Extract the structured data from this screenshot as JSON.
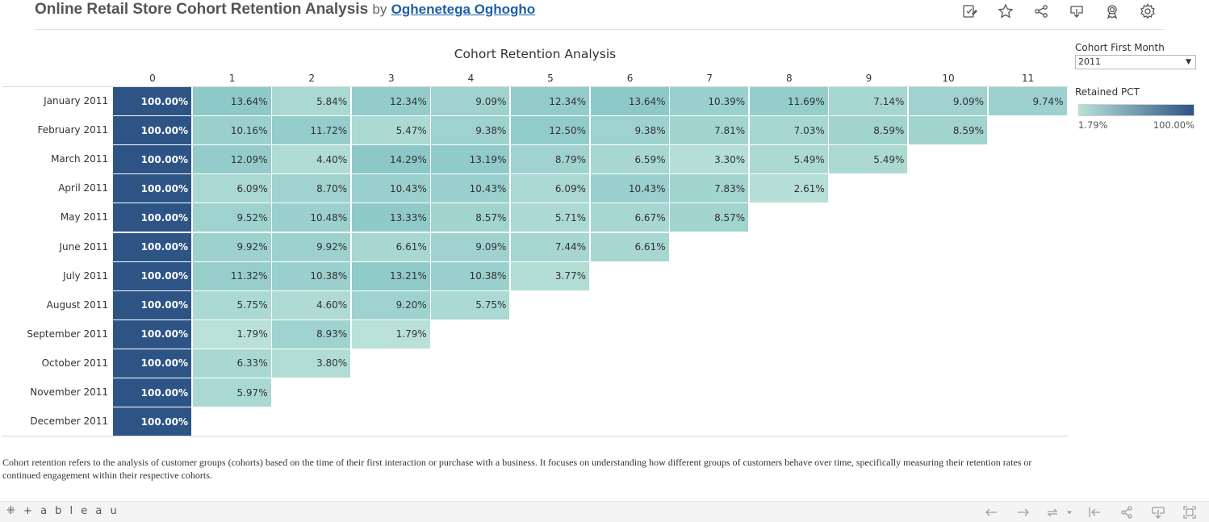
{
  "header": {
    "title": "Online Retail Store Cohort Retention Analysis",
    "by": "by",
    "author": "Oghenetega Oghogho"
  },
  "toolbar": {
    "icons": [
      "edit-icon",
      "star-icon",
      "share-icon",
      "download-icon",
      "badge-icon",
      "gear-icon"
    ]
  },
  "filter": {
    "label": "Cohort First Month",
    "value": "2011"
  },
  "legend": {
    "title": "Retained PCT",
    "min_label": "1.79%",
    "max_label": "100.00%",
    "color_min": "#b9e1d8",
    "color_max": "#2e5486"
  },
  "description": "Cohort retention refers to the analysis of customer groups (cohorts) based on the time of their first interaction or purchase with a business. It focuses on understanding how different groups of customers behave over time, specifically measuring their retention rates or continued engagement within their respective cohorts.",
  "footer": {
    "brand": "+ a b l e a u"
  },
  "chart_data": {
    "type": "heatmap",
    "title": "Cohort Retention Analysis",
    "columns": [
      "0",
      "1",
      "2",
      "3",
      "4",
      "5",
      "6",
      "7",
      "8",
      "9",
      "10",
      "11"
    ],
    "rows": [
      "January 2011",
      "February 2011",
      "March 2011",
      "April 2011",
      "May 2011",
      "June 2011",
      "July 2011",
      "August 2011",
      "September 2011",
      "October 2011",
      "November 2011",
      "December 2011"
    ],
    "values": [
      [
        100.0,
        13.64,
        5.84,
        12.34,
        9.09,
        12.34,
        13.64,
        10.39,
        11.69,
        7.14,
        9.09,
        9.74
      ],
      [
        100.0,
        10.16,
        11.72,
        5.47,
        9.38,
        12.5,
        9.38,
        7.81,
        7.03,
        8.59,
        8.59
      ],
      [
        100.0,
        12.09,
        4.4,
        14.29,
        13.19,
        8.79,
        6.59,
        3.3,
        5.49,
        5.49
      ],
      [
        100.0,
        6.09,
        8.7,
        10.43,
        10.43,
        6.09,
        10.43,
        7.83,
        2.61
      ],
      [
        100.0,
        9.52,
        10.48,
        13.33,
        8.57,
        5.71,
        6.67,
        8.57
      ],
      [
        100.0,
        9.92,
        9.92,
        6.61,
        9.09,
        7.44,
        6.61
      ],
      [
        100.0,
        11.32,
        10.38,
        13.21,
        10.38,
        3.77
      ],
      [
        100.0,
        5.75,
        4.6,
        9.2,
        5.75
      ],
      [
        100.0,
        1.79,
        8.93,
        1.79
      ],
      [
        100.0,
        6.33,
        3.8
      ],
      [
        100.0,
        5.97
      ],
      [
        100.0
      ]
    ],
    "value_suffix": "%",
    "color_range": [
      1.79,
      100.0
    ]
  }
}
